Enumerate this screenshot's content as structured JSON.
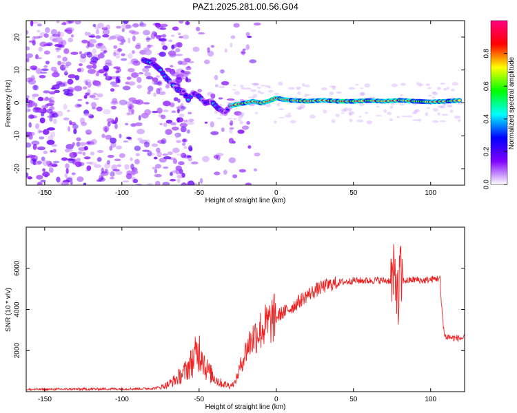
{
  "title": "PAZ1.2025.281.00.56.G04",
  "chart_data": [
    {
      "type": "heatmap",
      "xlabel": "Height of straight line (km)",
      "ylabel": "Frequency (Hz)",
      "xlim": [
        -162,
        122
      ],
      "ylim": [
        -25,
        25
      ],
      "xticks": [
        -150,
        -100,
        -50,
        0,
        50,
        100
      ],
      "yticks": [
        -20,
        -10,
        0,
        10,
        20
      ],
      "ridge_points": [
        {
          "x": -86,
          "y": 13
        },
        {
          "x": -80,
          "y": 12
        },
        {
          "x": -75,
          "y": 10
        },
        {
          "x": -72,
          "y": 8
        },
        {
          "x": -68,
          "y": 6
        },
        {
          "x": -64,
          "y": 4
        },
        {
          "x": -60,
          "y": 3.5
        },
        {
          "x": -57,
          "y": 1
        },
        {
          "x": -54,
          "y": 3
        },
        {
          "x": -50,
          "y": 2
        },
        {
          "x": -46,
          "y": 0
        },
        {
          "x": -42,
          "y": 0.5
        },
        {
          "x": -38,
          "y": -1.5
        },
        {
          "x": -33,
          "y": -3
        },
        {
          "x": -30,
          "y": -1
        },
        {
          "x": -26,
          "y": -0.5
        },
        {
          "x": -20,
          "y": 0
        },
        {
          "x": -15,
          "y": 0.5
        },
        {
          "x": -10,
          "y": 0
        },
        {
          "x": -5,
          "y": 0.5
        },
        {
          "x": 0,
          "y": 1.5
        },
        {
          "x": 5,
          "y": 1
        },
        {
          "x": 10,
          "y": 0.8
        },
        {
          "x": 20,
          "y": 0.5
        },
        {
          "x": 30,
          "y": 0.8
        },
        {
          "x": 40,
          "y": 0.5
        },
        {
          "x": 50,
          "y": 0.5
        },
        {
          "x": 60,
          "y": 0.7
        },
        {
          "x": 70,
          "y": 0.5
        },
        {
          "x": 80,
          "y": 0.8
        },
        {
          "x": 90,
          "y": 0.5
        },
        {
          "x": 100,
          "y": 0.3
        },
        {
          "x": 110,
          "y": 0.5
        },
        {
          "x": 120,
          "y": 0.8
        }
      ],
      "colorbar": {
        "label": "Normalized spectral amplitude",
        "range": [
          0,
          1
        ],
        "ticks": [
          "0.0",
          "0.2",
          "0.4",
          "0.6",
          "0.8"
        ],
        "tick_values": [
          0,
          0.2,
          0.4,
          0.6,
          0.8
        ],
        "colors": [
          "#ffffff",
          "#8000ff",
          "#0000ff",
          "#00ffff",
          "#00ff00",
          "#ffff00",
          "#ff0000",
          "#ff0080"
        ]
      }
    },
    {
      "type": "line",
      "xlabel": "Height of straight line (km)",
      "ylabel": "SNR (10 * v/v)",
      "xlim": [
        -162,
        122
      ],
      "ylim": [
        0,
        8000
      ],
      "xticks": [
        -150,
        -100,
        -50,
        0,
        50,
        100
      ],
      "yticks": [
        2000,
        4000,
        6000
      ],
      "series": [
        {
          "name": "SNR",
          "color": "#ee2222",
          "x": [
            -162,
            -150,
            -130,
            -110,
            -90,
            -80,
            -75,
            -70,
            -65,
            -60,
            -55,
            -52,
            -50,
            -48,
            -46,
            -43,
            -40,
            -37,
            -33,
            -30,
            -27,
            -25,
            -22,
            -20,
            -18,
            -16,
            -14,
            -12,
            -10,
            -7,
            -5,
            -3,
            0,
            3,
            6,
            10,
            15,
            20,
            25,
            30,
            35,
            40,
            45,
            50,
            55,
            60,
            65,
            70,
            75,
            78,
            79,
            80,
            81,
            82,
            85,
            90,
            95,
            100,
            104,
            106,
            107,
            109,
            115,
            122
          ],
          "y": [
            100,
            110,
            120,
            130,
            140,
            160,
            220,
            350,
            600,
            900,
            1400,
            1800,
            2000,
            1900,
            1200,
            900,
            700,
            450,
            350,
            300,
            400,
            800,
            1500,
            1900,
            2300,
            2500,
            2700,
            2900,
            3000,
            3200,
            3300,
            3500,
            3600,
            3800,
            3900,
            4100,
            4400,
            4700,
            4900,
            5100,
            5200,
            5300,
            5350,
            5400,
            5400,
            5400,
            5420,
            5400,
            5400,
            5500,
            4000,
            5800,
            5300,
            5400,
            5400,
            5450,
            5400,
            5450,
            5500,
            5500,
            4200,
            2700,
            2600,
            2600
          ]
        }
      ]
    }
  ]
}
